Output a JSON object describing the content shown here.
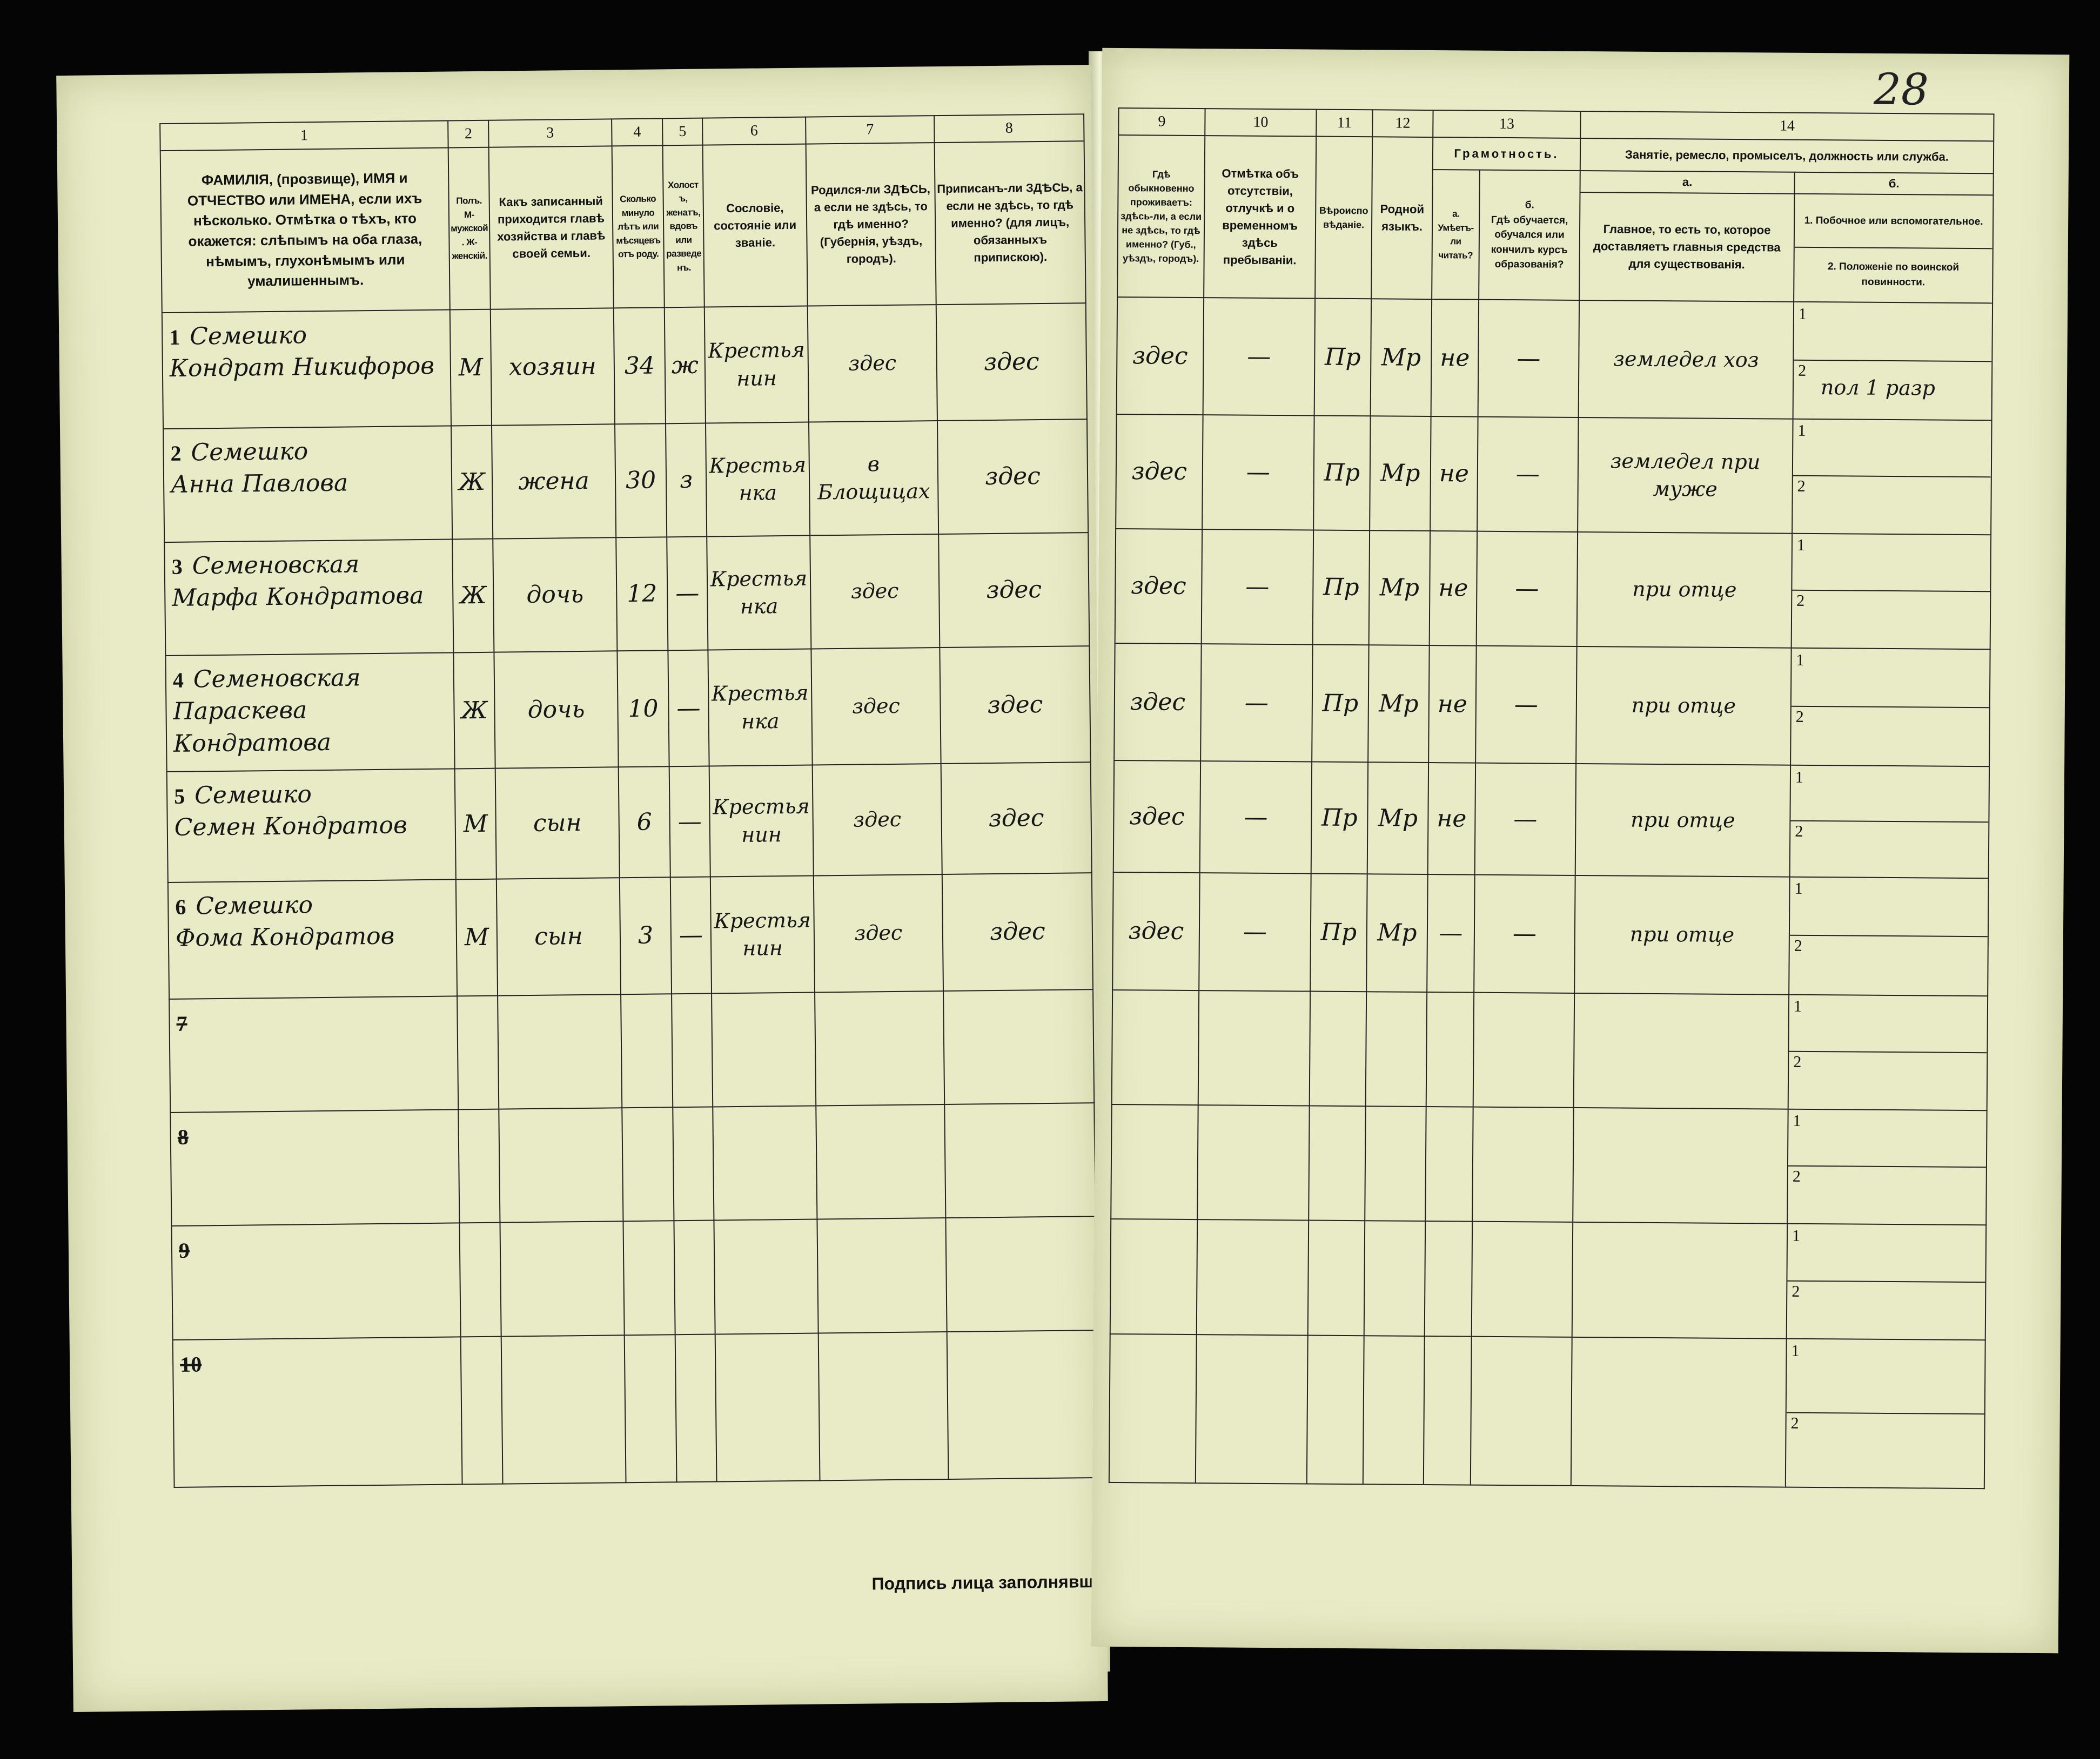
{
  "page_number": "28",
  "left_header": {
    "col_numbers": [
      "1",
      "2",
      "3",
      "4",
      "5",
      "6",
      "7",
      "8"
    ],
    "col1": "ФАМИЛІЯ, (прозвище), ИМЯ и ОТЧЕСТВО или ИМЕНА, если ихъ нѣсколько. Отмѣтка о тѣхъ, кто окажется: слѣпымъ на оба глаза, нѣмымъ, глухонѣмымъ или умалишеннымъ.",
    "col2": "Полъ. М-мужской. Ж-женскій.",
    "col3": "Какъ записанный приходится главѣ хозяйства и главѣ своей семьи.",
    "col4": "Сколько минуло лѣтъ или мѣсяцевъ отъ роду.",
    "col5": "Холостъ, женатъ, вдовъ или разведенъ.",
    "col6": "Сословіе, состояніе или званіе.",
    "col7": "Родился-ли ЗДѢСЬ, а если не здѣсь, то гдѣ именно? (Губернія, уѣздъ, городъ).",
    "col8": "Приписанъ-ли ЗДѢСЬ, а если не здѣсь, то гдѣ именно? (для лицъ, обязанныхъ припискою)."
  },
  "right_header": {
    "col_numbers": [
      "9",
      "10",
      "11",
      "12",
      "13",
      "14"
    ],
    "col9": "Гдѣ обыкновенно проживаетъ: здѣсь-ли, а если не здѣсь, то гдѣ именно? (Губ., уѣздъ, городъ).",
    "col10": "Отмѣтка объ отсутствіи, отлучкѣ и о временномъ здѣсь пребываніи.",
    "col11": "Вѣроисповѣданіе.",
    "col12": "Родной языкъ.",
    "col13": "Грамотность.",
    "col13a_label": "а.",
    "col13a": "Умѣетъ-ли читать?",
    "col13b_label": "б.",
    "col13b": "Гдѣ обучается, обучался или кончилъ курсъ образованія?",
    "col14": "Занятіе, ремесло, промыселъ, должность или служба.",
    "col14a_label": "а.",
    "col14a": "Главное, то есть то, которое доставляетъ главныя средства для существованія.",
    "col14b_label": "б.",
    "col14b1": "1. Побочное или вспомогательное.",
    "col14b2": "2. Положеніе по воинской повинности."
  },
  "sub_labels": [
    "1",
    "2"
  ],
  "rows": [
    {
      "num": "1",
      "surname": "Семешко",
      "given": "Кондрат Никифоров",
      "sex": "М",
      "relation": "хозяин",
      "age": "34",
      "marital": "ж",
      "estate": "Крестьянин",
      "born": "здес",
      "registered": "здес",
      "resides": "здес",
      "absence": "—",
      "religion": "Пр",
      "language": "Мр",
      "literate": "не",
      "education": "—",
      "occupation": "земледел хоз",
      "side_occupation": "",
      "military": "пол 1 разр"
    },
    {
      "num": "2",
      "surname": "Семешко",
      "given": "Анна Павлова",
      "sex": "Ж",
      "relation": "жена",
      "age": "30",
      "marital": "з",
      "estate": "Крестьянка",
      "born": "в Блощицах",
      "registered": "здес",
      "resides": "здес",
      "absence": "—",
      "religion": "Пр",
      "language": "Мр",
      "literate": "не",
      "education": "—",
      "occupation": "земледел при муже",
      "side_occupation": "",
      "military": ""
    },
    {
      "num": "3",
      "surname": "Семеновская",
      "given": "Марфа Кондратова",
      "sex": "Ж",
      "relation": "дочь",
      "age": "12",
      "marital": "—",
      "estate": "Крестьянка",
      "born": "здес",
      "registered": "здес",
      "resides": "здес",
      "absence": "—",
      "religion": "Пр",
      "language": "Мр",
      "literate": "не",
      "education": "—",
      "occupation": "при отце",
      "side_occupation": "",
      "military": ""
    },
    {
      "num": "4",
      "surname": "Семеновская",
      "given": "Параскева Кондратова",
      "sex": "Ж",
      "relation": "дочь",
      "age": "10",
      "marital": "—",
      "estate": "Крестьянка",
      "born": "здес",
      "registered": "здес",
      "resides": "здес",
      "absence": "—",
      "religion": "Пр",
      "language": "Мр",
      "literate": "не",
      "education": "—",
      "occupation": "при отце",
      "side_occupation": "",
      "military": ""
    },
    {
      "num": "5",
      "surname": "Семешко",
      "given": "Семен Кондратов",
      "sex": "М",
      "relation": "сын",
      "age": "6",
      "marital": "—",
      "estate": "Крестьянин",
      "born": "здес",
      "registered": "здес",
      "resides": "здес",
      "absence": "—",
      "religion": "Пр",
      "language": "Мр",
      "literate": "не",
      "education": "—",
      "occupation": "при отце",
      "side_occupation": "",
      "military": ""
    },
    {
      "num": "6",
      "surname": "Семешко",
      "given": "Фома Кондратов",
      "sex": "М",
      "relation": "сын",
      "age": "3",
      "marital": "—",
      "estate": "Крестьянин",
      "born": "здес",
      "registered": "здес",
      "resides": "здес",
      "absence": "—",
      "religion": "Пр",
      "language": "Мр",
      "literate": "—",
      "education": "—",
      "occupation": "при отце",
      "side_occupation": "",
      "military": ""
    }
  ],
  "empty_rows": [
    "7",
    "8",
    "9",
    "10"
  ],
  "signature_label": "Подпись лица заполнявшаго листъ"
}
